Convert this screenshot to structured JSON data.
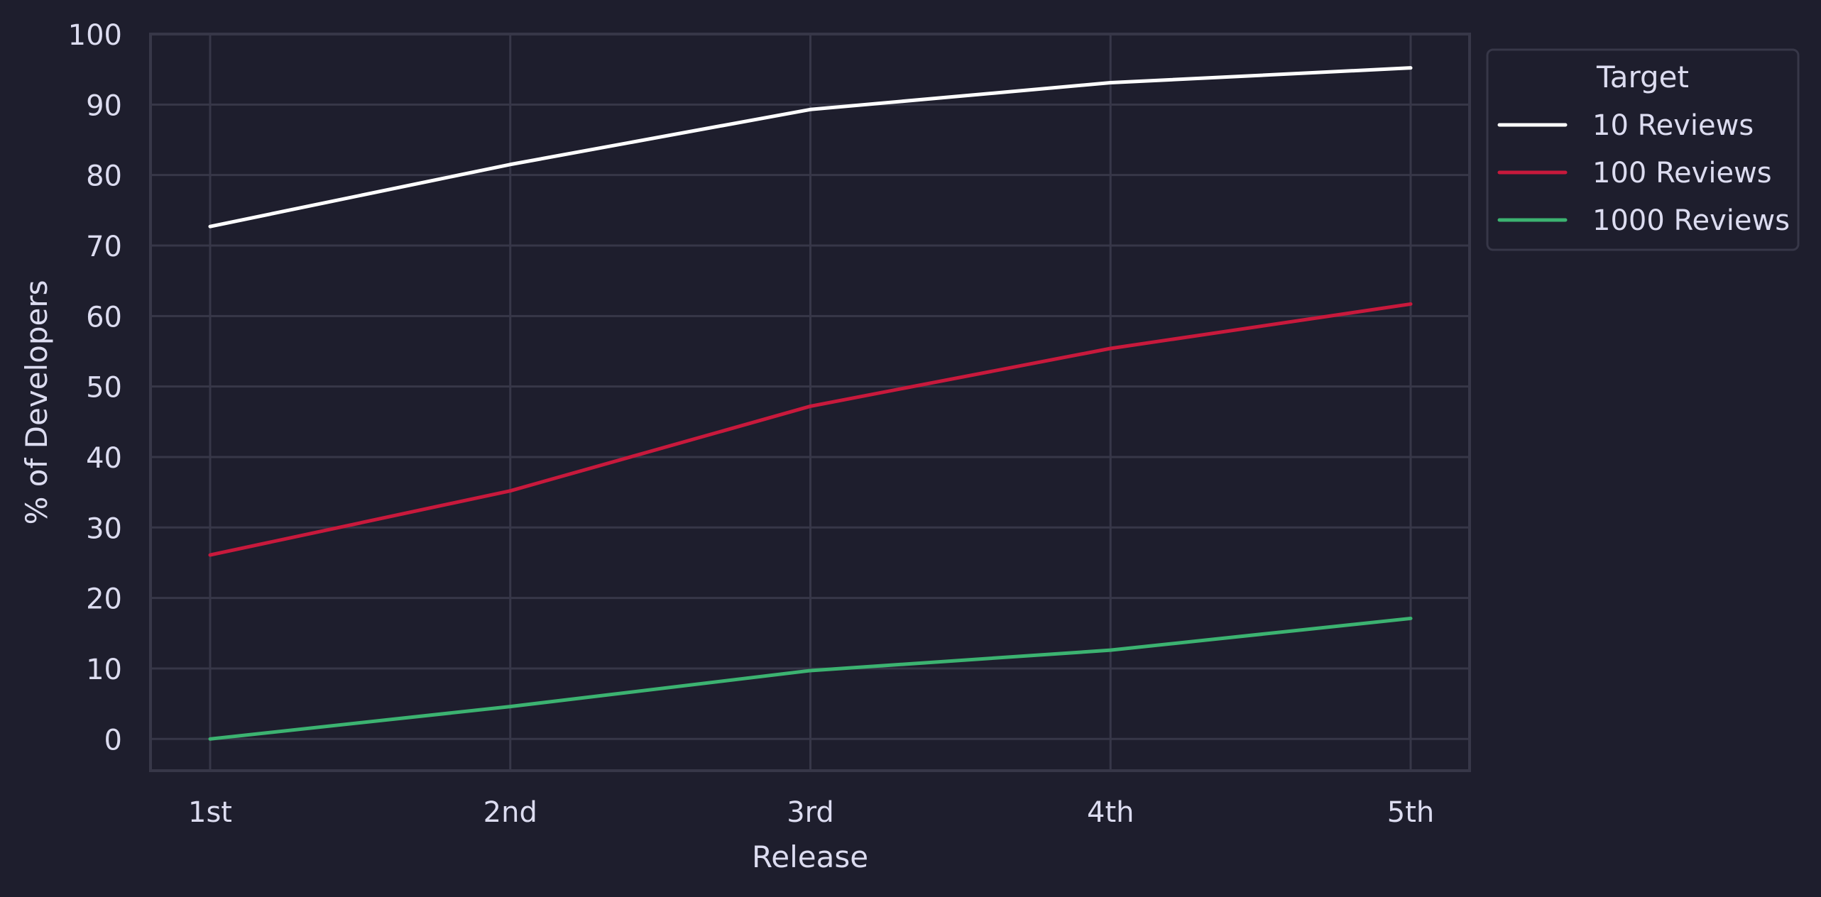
{
  "chart_data": {
    "type": "line",
    "title": "",
    "xlabel": "Release",
    "ylabel": "% of Developers",
    "categories": [
      "1st",
      "2nd",
      "3rd",
      "4th",
      "5th"
    ],
    "ylim": [
      -4.5,
      100
    ],
    "yticks": [
      0,
      10,
      20,
      30,
      40,
      50,
      60,
      70,
      80,
      90,
      100
    ],
    "grid": true,
    "legend": {
      "title": "Target",
      "placement": "outside-top-right"
    },
    "series": [
      {
        "name": "10 Reviews",
        "color": "#ffffff",
        "values": [
          72.7,
          81.5,
          89.3,
          93.1,
          95.2
        ]
      },
      {
        "name": "100 Reviews",
        "color": "#c8193c",
        "values": [
          26.1,
          35.2,
          47.2,
          55.4,
          61.7
        ]
      },
      {
        "name": "1000 Reviews",
        "color": "#3cb371",
        "values": [
          0.0,
          4.6,
          9.7,
          12.6,
          17.1
        ]
      }
    ]
  },
  "colors": {
    "background": "#1e1e2d",
    "grid": "#373748",
    "text": "#dcdcf0"
  }
}
